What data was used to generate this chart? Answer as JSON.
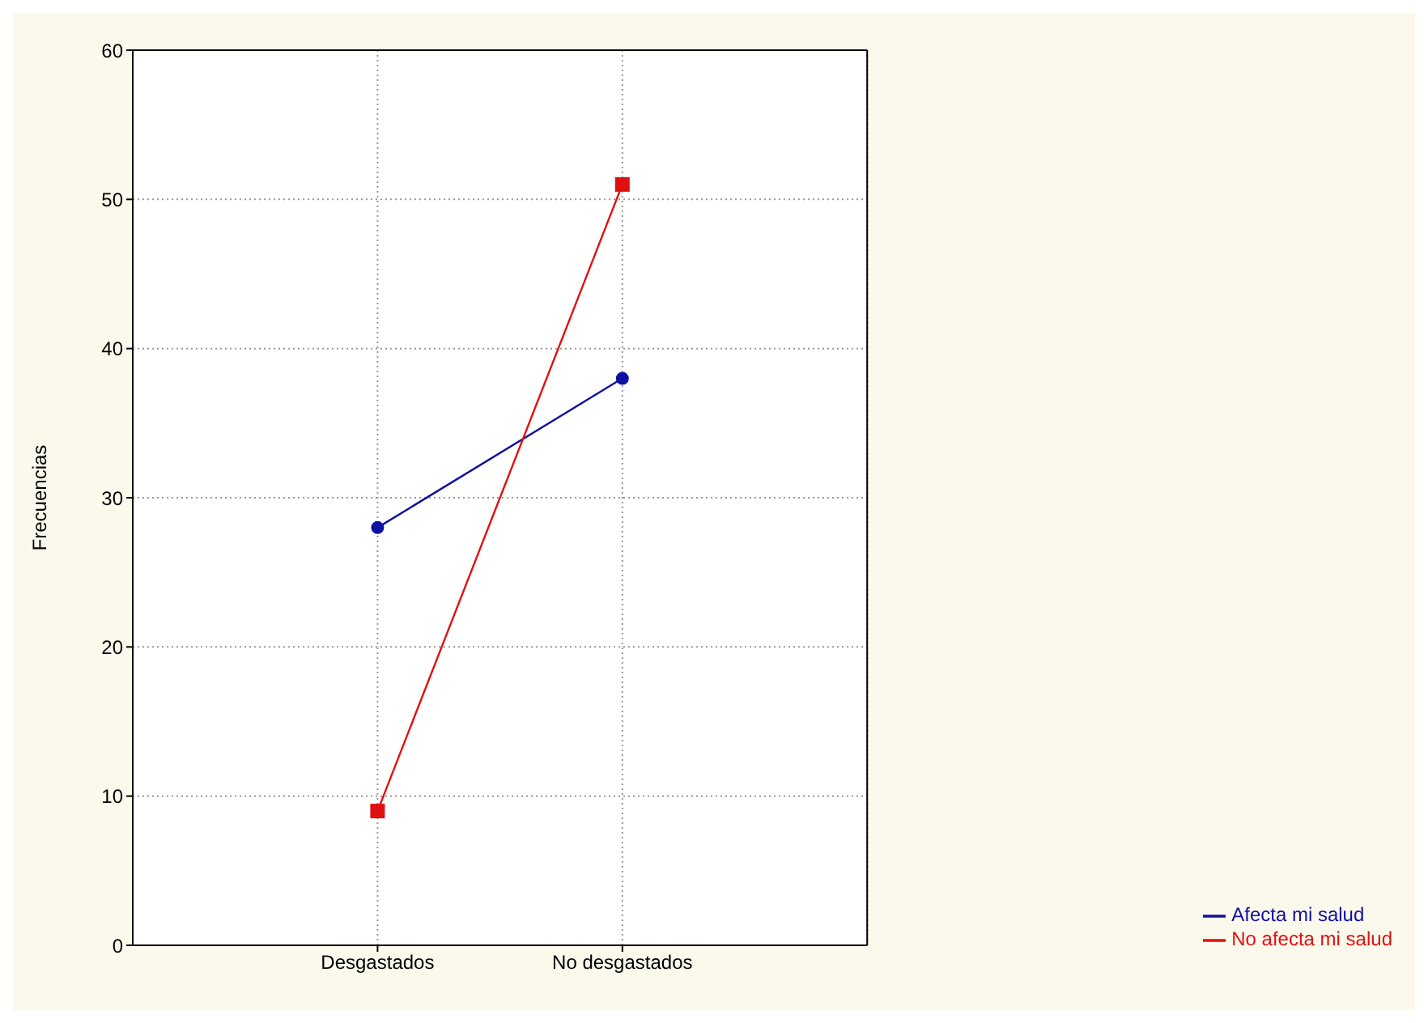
{
  "chart_data": {
    "type": "line",
    "ylabel": "Frecuencias",
    "categories": [
      "Desgastados",
      "No desgastados"
    ],
    "series": [
      {
        "name": "Afecta mi salud",
        "color": "#1010a0",
        "values": [
          28,
          38
        ],
        "marker": "circle"
      },
      {
        "name": "No afecta mi salud",
        "color": "#e01010",
        "values": [
          9,
          51
        ],
        "marker": "square"
      }
    ],
    "ylim": [
      0,
      60
    ],
    "yticks": [
      0,
      10,
      20,
      30,
      40,
      50,
      60
    ],
    "grid": true,
    "legend": "bottom right",
    "line_style": "solid"
  }
}
